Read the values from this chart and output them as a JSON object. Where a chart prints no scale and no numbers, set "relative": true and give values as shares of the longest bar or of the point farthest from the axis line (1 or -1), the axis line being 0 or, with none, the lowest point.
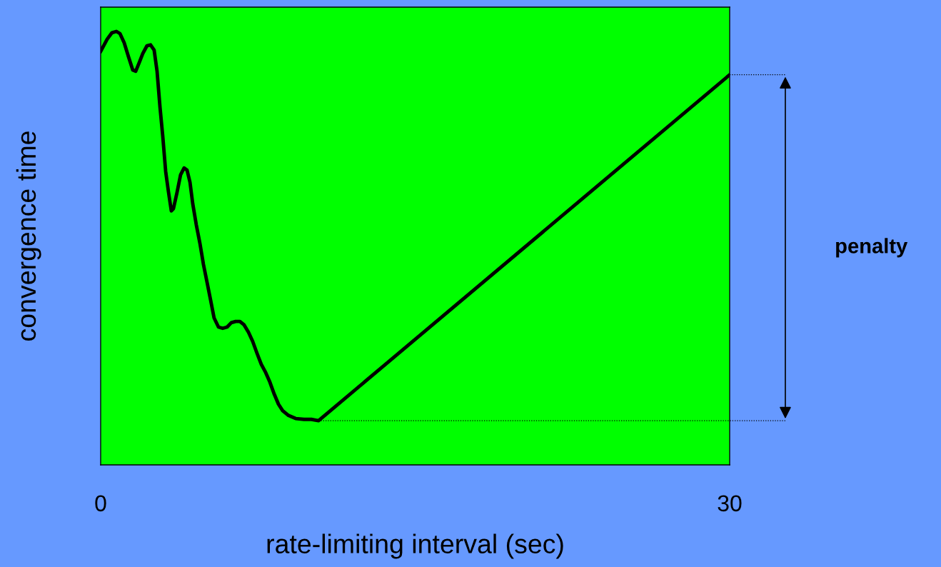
{
  "chart_data": {
    "type": "line",
    "relative": true,
    "xlabel": "rate-limiting interval (sec)",
    "ylabel": "convergence time",
    "xlim": [
      0,
      30
    ],
    "xticks": [
      0,
      30
    ],
    "grid": false,
    "legend": false,
    "marker": "none",
    "line_style": "solid",
    "series": [
      {
        "color": "#000000",
        "x": [
          0,
          0.31,
          0.54,
          0.75,
          0.92,
          1.12,
          1.33,
          1.53,
          1.67,
          1.84,
          2.01,
          2.21,
          2.38,
          2.55,
          2.69,
          2.83,
          2.96,
          3.1,
          3.23,
          3.37,
          3.47,
          3.64,
          3.81,
          3.98,
          4.12,
          4.26,
          4.39,
          4.56,
          4.73,
          4.9,
          5.07,
          5.24,
          5.41,
          5.62,
          5.82,
          6.03,
          6.23,
          6.44,
          6.64,
          6.84,
          7.05,
          7.25,
          7.46,
          7.66,
          7.87,
          8.07,
          8.28,
          8.48,
          8.68,
          8.96,
          9.3,
          9.7,
          10.05,
          10.39,
          30
        ],
        "values": [
          0.954,
          0.982,
          0.997,
          1.0,
          0.995,
          0.974,
          0.941,
          0.911,
          0.908,
          0.928,
          0.949,
          0.967,
          0.969,
          0.957,
          0.908,
          0.825,
          0.759,
          0.677,
          0.631,
          0.586,
          0.591,
          0.628,
          0.669,
          0.685,
          0.68,
          0.652,
          0.603,
          0.554,
          0.512,
          0.463,
          0.422,
          0.381,
          0.339,
          0.318,
          0.315,
          0.318,
          0.328,
          0.331,
          0.331,
          0.323,
          0.306,
          0.285,
          0.257,
          0.232,
          0.213,
          0.191,
          0.163,
          0.14,
          0.125,
          0.114,
          0.107,
          0.105,
          0.105,
          0.102,
          0.9
        ]
      }
    ],
    "ref_lines": [
      {
        "axis": "y",
        "value": 0.102,
        "color": "#000000",
        "line_style": "dotted"
      }
    ],
    "annotations": [
      "penalty"
    ]
  }
}
